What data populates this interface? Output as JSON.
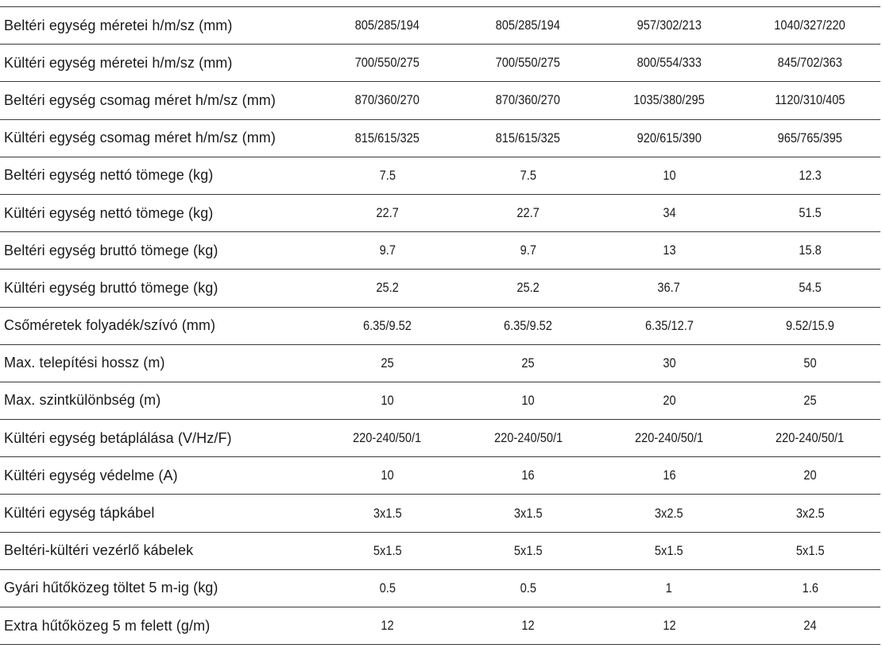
{
  "table": {
    "rows": [
      {
        "label": "Beltéri egység méretei h/m/sz (mm)",
        "values": [
          "805/285/194",
          "805/285/194",
          "957/302/213",
          "1040/327/220"
        ]
      },
      {
        "label": "Kültéri egység méretei h/m/sz (mm)",
        "values": [
          "700/550/275",
          "700/550/275",
          "800/554/333",
          "845/702/363"
        ]
      },
      {
        "label": "Beltéri egység csomag méret h/m/sz (mm)",
        "values": [
          "870/360/270",
          "870/360/270",
          "1035/380/295",
          "1120/310/405"
        ]
      },
      {
        "label": "Kültéri egység csomag méret h/m/sz (mm)",
        "values": [
          "815/615/325",
          "815/615/325",
          "920/615/390",
          "965/765/395"
        ]
      },
      {
        "label": "Beltéri egység nettó tömege (kg)",
        "values": [
          "7.5",
          "7.5",
          "10",
          "12.3"
        ]
      },
      {
        "label": "Kültéri egység nettó tömege (kg)",
        "values": [
          "22.7",
          "22.7",
          "34",
          "51.5"
        ]
      },
      {
        "label": "Beltéri egység bruttó tömege (kg)",
        "values": [
          "9.7",
          "9.7",
          "13",
          "15.8"
        ]
      },
      {
        "label": "Kültéri egység bruttó tömege (kg)",
        "values": [
          "25.2",
          "25.2",
          "36.7",
          "54.5"
        ]
      },
      {
        "label": "Csőméretek folyadék/szívó (mm)",
        "values": [
          "6.35/9.52",
          "6.35/9.52",
          "6.35/12.7",
          "9.52/15.9"
        ]
      },
      {
        "label": "Max. telepítési hossz (m)",
        "values": [
          "25",
          "25",
          "30",
          "50"
        ]
      },
      {
        "label": "Max. szintkülönbség (m)",
        "values": [
          "10",
          "10",
          "20",
          "25"
        ]
      },
      {
        "label": "Kültéri egység betáplálása (V/Hz/F)",
        "values": [
          "220-240/50/1",
          "220-240/50/1",
          "220-240/50/1",
          "220-240/50/1"
        ]
      },
      {
        "label": "Kültéri egység védelme (A)",
        "values": [
          "10",
          "16",
          "16",
          "20"
        ]
      },
      {
        "label": "Kültéri egység tápkábel",
        "values": [
          "3x1.5",
          "3x1.5",
          "3x2.5",
          "3x2.5"
        ]
      },
      {
        "label": "Beltéri-kültéri vezérlő kábelek",
        "values": [
          "5x1.5",
          "5x1.5",
          "5x1.5",
          "5x1.5"
        ]
      },
      {
        "label": "Gyári hűtőközeg töltet 5 m-ig (kg)",
        "values": [
          "0.5",
          "0.5",
          "1",
          "1.6"
        ]
      },
      {
        "label": "Extra hűtőközeg 5 m felett (g/m)",
        "values": [
          "12",
          "12",
          "12",
          "24"
        ]
      }
    ]
  }
}
